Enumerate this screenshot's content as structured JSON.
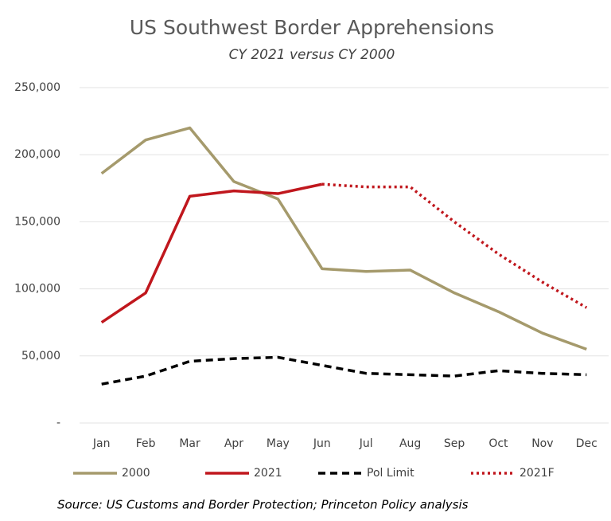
{
  "chart_data": {
    "type": "line",
    "title": "US Southwest Border Apprehensions",
    "subtitle": "CY 2021 versus CY 2000",
    "source": "Source:  US Customs and Border Protection; Princeton  Policy analysis",
    "categories": [
      "Jan",
      "Feb",
      "Mar",
      "Apr",
      "May",
      "Jun",
      "Jul",
      "Aug",
      "Sep",
      "Oct",
      "Nov",
      "Dec"
    ],
    "series": [
      {
        "name": "2000",
        "color": "#a59a6c",
        "style": "solid",
        "values": [
          186000,
          211000,
          220000,
          180000,
          167000,
          115000,
          113000,
          114000,
          97000,
          83000,
          67000,
          55000
        ]
      },
      {
        "name": "2021",
        "color": "#c0171d",
        "style": "solid",
        "values": [
          75000,
          97000,
          169000,
          173000,
          171000,
          178000,
          null,
          null,
          null,
          null,
          null,
          null
        ]
      },
      {
        "name": "Pol Limit",
        "color": "#000000",
        "style": "dashed",
        "values": [
          29000,
          35000,
          46000,
          48000,
          49000,
          43000,
          37000,
          36000,
          35000,
          39000,
          37000,
          36000
        ]
      },
      {
        "name": "2021F",
        "color": "#c0171d",
        "style": "dotted",
        "values": [
          null,
          null,
          null,
          null,
          null,
          178000,
          176000,
          176000,
          150000,
          126000,
          105000,
          86000
        ]
      }
    ],
    "ylim": [
      0,
      250000
    ],
    "yticks": [
      {
        "value": 0,
        "label": "-"
      },
      {
        "value": 50000,
        "label": "50,000"
      },
      {
        "value": 100000,
        "label": "100,000"
      },
      {
        "value": 150000,
        "label": "150,000"
      },
      {
        "value": 200000,
        "label": "200,000"
      },
      {
        "value": 250000,
        "label": "250,000"
      }
    ],
    "grid": true
  }
}
